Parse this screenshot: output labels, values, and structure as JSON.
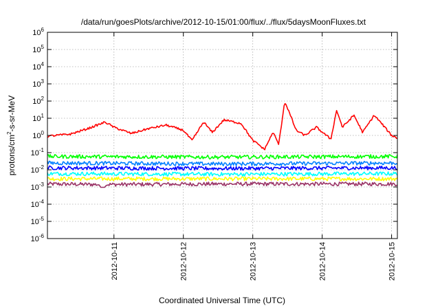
{
  "chart_data": {
    "type": "line",
    "title": "/data/run/goesPlots/archive/2012-10-15/01:00/flux/../flux/5daysMoonFluxes.txt",
    "xlabel": "Coordinated Universal Time (UTC)",
    "ylabel": "protons/cm²-s-sr-MeV",
    "ylabel_parts": {
      "before": "protons/cm",
      "sup": "2",
      "after": "-s-sr-MeV"
    },
    "yscale": "log",
    "ylim": [
      1e-06,
      1000000.0
    ],
    "xlim": [
      "2012-10-10T01:00",
      "2012-10-15T02:00"
    ],
    "grid": true,
    "y_ticks": [
      {
        "base": "10",
        "exp": "6",
        "value": 1000000.0
      },
      {
        "base": "10",
        "exp": "5",
        "value": 100000.0
      },
      {
        "base": "10",
        "exp": "4",
        "value": 10000.0
      },
      {
        "base": "10",
        "exp": "3",
        "value": 1000.0
      },
      {
        "base": "10",
        "exp": "2",
        "value": 100.0
      },
      {
        "base": "10",
        "exp": "1",
        "value": 10.0
      },
      {
        "base": "10",
        "exp": "0",
        "value": 1.0
      },
      {
        "base": "10",
        "exp": "-1",
        "value": 0.1
      },
      {
        "base": "10",
        "exp": "-2",
        "value": 0.01
      },
      {
        "base": "10",
        "exp": "-3",
        "value": 0.001
      },
      {
        "base": "10",
        "exp": "-4",
        "value": 0.0001
      },
      {
        "base": "10",
        "exp": "-5",
        "value": 1e-05
      },
      {
        "base": "10",
        "exp": "-6",
        "value": 1e-06
      }
    ],
    "x_ticks": [
      {
        "label": "2012-10-11",
        "value": "2012-10-11T00:00"
      },
      {
        "label": "2012-10-12",
        "value": "2012-10-12T00:00"
      },
      {
        "label": "2012-10-13",
        "value": "2012-10-13T00:00"
      },
      {
        "label": "2012-10-14",
        "value": "2012-10-14T00:00"
      },
      {
        "label": "2012-10-15",
        "value": "2012-10-15T00:00"
      }
    ],
    "series": [
      {
        "color": "#ff0000",
        "band": [
          0.5,
          20
        ],
        "x": [
          "2012-10-10T01:00",
          "2012-10-10T09:00",
          "2012-10-10T15:00",
          "2012-10-10T21:00",
          "2012-10-11T00:00",
          "2012-10-11T06:00",
          "2012-10-11T12:00",
          "2012-10-11T18:00",
          "2012-10-12T00:00",
          "2012-10-12T03:00",
          "2012-10-12T07:00",
          "2012-10-12T10:00",
          "2012-10-12T14:00",
          "2012-10-12T20:00",
          "2012-10-13T00:00",
          "2012-10-13T02:00",
          "2012-10-13T04:00",
          "2012-10-13T07:00",
          "2012-10-13T09:00",
          "2012-10-13T11:00",
          "2012-10-13T12:00",
          "2012-10-13T15:00",
          "2012-10-13T18:00",
          "2012-10-13T22:00",
          "2012-10-14T03:00",
          "2012-10-14T05:00",
          "2012-10-14T07:00",
          "2012-10-14T11:00",
          "2012-10-14T14:00",
          "2012-10-14T18:00",
          "2012-10-14T21:00",
          "2012-10-15T00:00",
          "2012-10-15T02:00"
        ],
        "values": [
          0.9,
          1.2,
          2.5,
          6,
          3,
          1.3,
          2.5,
          4,
          2,
          0.5,
          6,
          1.5,
          8,
          5,
          0.5,
          0.3,
          0.15,
          1.5,
          0.3,
          90,
          40,
          2,
          1,
          3,
          0.6,
          30,
          3,
          15,
          1.5,
          15,
          4,
          1,
          0.7
        ]
      },
      {
        "color": "#00ff00",
        "band": [
          0.03,
          0.15
        ],
        "x": [
          "2012-10-10T01:00",
          "2012-10-12T12:00",
          "2012-10-15T02:00"
        ],
        "values": [
          0.06,
          0.055,
          0.06
        ]
      },
      {
        "color": "#0080ff",
        "band": [
          0.012,
          0.06
        ],
        "x": [
          "2012-10-10T01:00",
          "2012-10-12T12:00",
          "2012-10-15T02:00"
        ],
        "values": [
          0.025,
          0.022,
          0.025
        ]
      },
      {
        "color": "#0000ff",
        "band": [
          0.006,
          0.03
        ],
        "x": [
          "2012-10-10T01:00",
          "2012-10-12T12:00",
          "2012-10-15T02:00"
        ],
        "values": [
          0.013,
          0.012,
          0.013
        ]
      },
      {
        "color": "#00ffff",
        "band": [
          0.004,
          0.008
        ],
        "x": [
          "2012-10-10T01:00",
          "2012-10-12T12:00",
          "2012-10-15T02:00"
        ],
        "values": [
          0.006,
          0.0055,
          0.006
        ]
      },
      {
        "color": "#ffff00",
        "band": [
          0.0025,
          0.004
        ],
        "x": [
          "2012-10-10T01:00",
          "2012-10-12T12:00",
          "2012-10-15T02:00"
        ],
        "values": [
          0.003,
          0.003,
          0.003
        ]
      },
      {
        "color": "#993366",
        "band": [
          0.0012,
          0.0018
        ],
        "x": [
          "2012-10-10T01:00",
          "2012-10-10T19:00",
          "2012-10-10T20:00",
          "2012-10-10T21:00",
          "2012-10-12T12:00",
          "2012-10-15T02:00"
        ],
        "values": [
          0.0015,
          0.0014,
          8e-05,
          0.0014,
          0.0015,
          0.0015
        ]
      }
    ]
  }
}
